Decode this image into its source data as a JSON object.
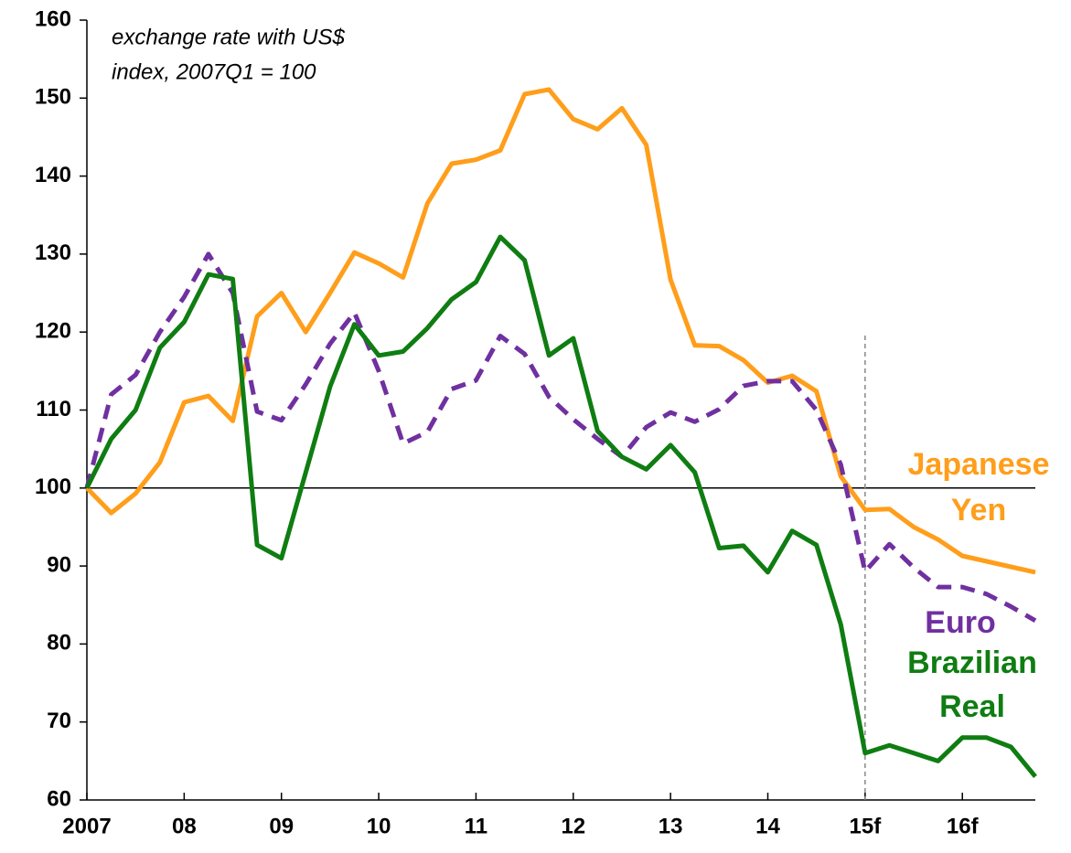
{
  "chart_data": {
    "type": "line",
    "annotations": [
      "exchange rate with US$",
      "index, 2007Q1 = 100"
    ],
    "categories": [
      "2007",
      null,
      null,
      null,
      "08",
      null,
      null,
      null,
      "09",
      null,
      null,
      null,
      "10",
      null,
      null,
      null,
      "11",
      null,
      null,
      null,
      "12",
      null,
      null,
      null,
      "13",
      null,
      null,
      null,
      "14",
      null,
      null,
      null,
      "15f",
      null,
      null,
      null,
      "16f",
      null,
      null,
      null
    ],
    "series": [
      {
        "name": "Japanese Yen",
        "color": "#ff9e1b",
        "dashed": false,
        "values": [
          100,
          96.8,
          99.3,
          103.3,
          111,
          111.8,
          108.6,
          122,
          125,
          120,
          125,
          130.2,
          128.8,
          127,
          136.5,
          141.6,
          142.1,
          143.3,
          150.5,
          151.1,
          147.3,
          146,
          148.7,
          144,
          126.7,
          118.3,
          118.2,
          116.4,
          113.5,
          114.4,
          112.4,
          101.5,
          97.2,
          97.3,
          95,
          93.4,
          91.3,
          90.6,
          89.9,
          89.2
        ]
      },
      {
        "name": "Euro",
        "color": "#7030a0",
        "dashed": true,
        "values": [
          100,
          112,
          114.5,
          120,
          124.5,
          130,
          125,
          109.8,
          108.7,
          113.3,
          118.5,
          122.5,
          115,
          105.7,
          107.2,
          112.7,
          113.8,
          119.5,
          117.2,
          111.7,
          108.8,
          106.3,
          104,
          107.8,
          109.7,
          108.5,
          110.1,
          113.1,
          113.7,
          113.7,
          110,
          103,
          89.3,
          92.8,
          89.8,
          87.3,
          87.3,
          86.4,
          84.8,
          83
        ]
      },
      {
        "name": "Brazilian Real",
        "color": "#0f7d12",
        "dashed": false,
        "values": [
          100,
          106.3,
          110,
          118,
          121.3,
          127.4,
          126.8,
          92.7,
          91,
          102,
          113,
          121,
          117,
          117.5,
          120.5,
          124.2,
          126.4,
          132.2,
          129.2,
          117,
          119.2,
          107.3,
          104,
          102.4,
          105.5,
          102,
          92.3,
          92.6,
          89.2,
          94.5,
          92.7,
          82.5,
          66,
          67,
          66,
          65,
          68,
          68,
          66.8,
          63
        ]
      }
    ],
    "ylim": [
      60,
      160
    ],
    "yticks": [
      60,
      70,
      80,
      90,
      100,
      110,
      120,
      130,
      140,
      150,
      160
    ],
    "reference_line": 100,
    "forecast_start": "15f"
  }
}
